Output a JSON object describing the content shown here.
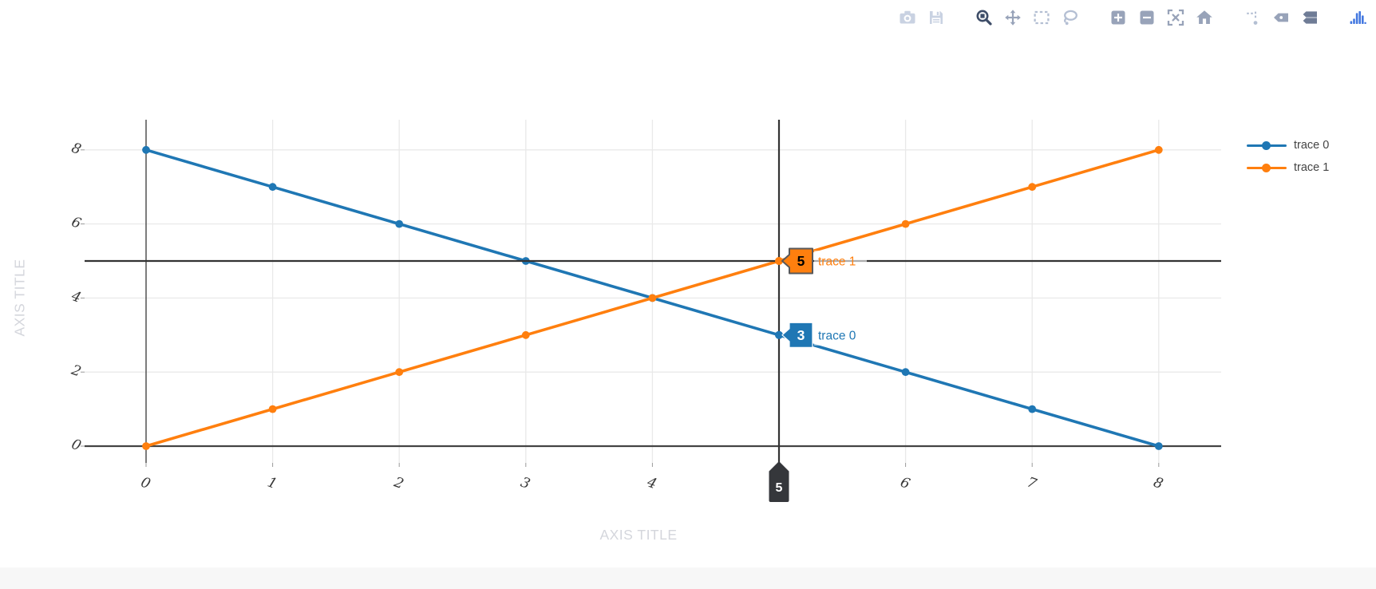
{
  "modebar": {
    "colors": {
      "faint": "#c9d2e2",
      "light": "#b4bfd3",
      "normal": "#98a3b9",
      "dark": "#6f7c96",
      "active": "#3e4d68",
      "logo": "#4478e0"
    },
    "icons": [
      {
        "name": "camera",
        "label": "Download plot as a png",
        "state": "faint",
        "group_start": false
      },
      {
        "name": "save",
        "label": "Save plot",
        "state": "faint",
        "group_start": false
      },
      {
        "name": "zoom",
        "label": "Zoom",
        "state": "active",
        "group_start": true
      },
      {
        "name": "pan",
        "label": "Pan",
        "state": "normal",
        "group_start": false
      },
      {
        "name": "box-select",
        "label": "Box Select",
        "state": "light",
        "group_start": false
      },
      {
        "name": "lasso-select",
        "label": "Lasso Select",
        "state": "light",
        "group_start": false
      },
      {
        "name": "zoom-in",
        "label": "Zoom in",
        "state": "normal",
        "group_start": true
      },
      {
        "name": "zoom-out",
        "label": "Zoom out",
        "state": "normal",
        "group_start": false
      },
      {
        "name": "autoscale",
        "label": "Autoscale",
        "state": "normal",
        "group_start": false
      },
      {
        "name": "reset-axes",
        "label": "Reset axes",
        "state": "normal",
        "group_start": false
      },
      {
        "name": "toggle-spikelines",
        "label": "Toggle Spike Lines",
        "state": "light",
        "group_start": true
      },
      {
        "name": "hover-closest",
        "label": "Show closest data on hover",
        "state": "normal",
        "group_start": false
      },
      {
        "name": "hover-compare",
        "label": "Compare data on hover",
        "state": "dark",
        "group_start": false
      },
      {
        "name": "plotly-logo",
        "label": "Produced with Plotly",
        "state": "logo",
        "group_start": true
      }
    ]
  },
  "chart_data": {
    "type": "line",
    "x": [
      0,
      1,
      2,
      3,
      4,
      5,
      6,
      7,
      8
    ],
    "series": [
      {
        "name": "trace 0",
        "color": "#1f77b4",
        "values": [
          8,
          7,
          6,
          5,
          4,
          3,
          2,
          1,
          0
        ]
      },
      {
        "name": "trace 1",
        "color": "#ff7f0e",
        "values": [
          0,
          1,
          2,
          3,
          4,
          5,
          6,
          7,
          8
        ]
      }
    ],
    "title": "",
    "xlabel": "AXIS TITLE",
    "ylabel": "AXIS TITLE",
    "x_ticks": [
      0,
      1,
      2,
      3,
      4,
      5,
      6,
      7,
      8
    ],
    "y_ticks": [
      0,
      2,
      4,
      6,
      8
    ],
    "xlim": [
      -0.49,
      8.5
    ],
    "ylim": [
      -0.45,
      8.82
    ],
    "grid": true,
    "legend_position": "right"
  },
  "hover": {
    "x": 5,
    "x_label": "5",
    "spike_y": 5,
    "points": [
      {
        "trace": "trace 0",
        "value": "3",
        "y": 3,
        "box_color": "#1f77b4",
        "text_color": "#ffffff",
        "border_color": "#ffffff",
        "label_color": "#1f77b4"
      },
      {
        "trace": "trace 1",
        "value": "5",
        "y": 5,
        "box_color": "#ff7f0e",
        "text_color": "#000000",
        "border_color": "#58585a",
        "label_color": "#ff7f0e"
      }
    ]
  },
  "legend": {
    "items": [
      {
        "label": "trace 0",
        "color": "#1f77b4"
      },
      {
        "label": "trace 1",
        "color": "#ff7f0e"
      }
    ]
  },
  "colors": {
    "background": "#ffffff",
    "grid": "#e9e9e9",
    "zeroline": "#444444",
    "spike": "#333333",
    "tick_label": "#383838",
    "tick_mark": "#999999",
    "axis_title": "#d4d6dc",
    "legend_text": "#444444",
    "hover_tag": "#35373b",
    "footer": "#f7f7f7"
  }
}
